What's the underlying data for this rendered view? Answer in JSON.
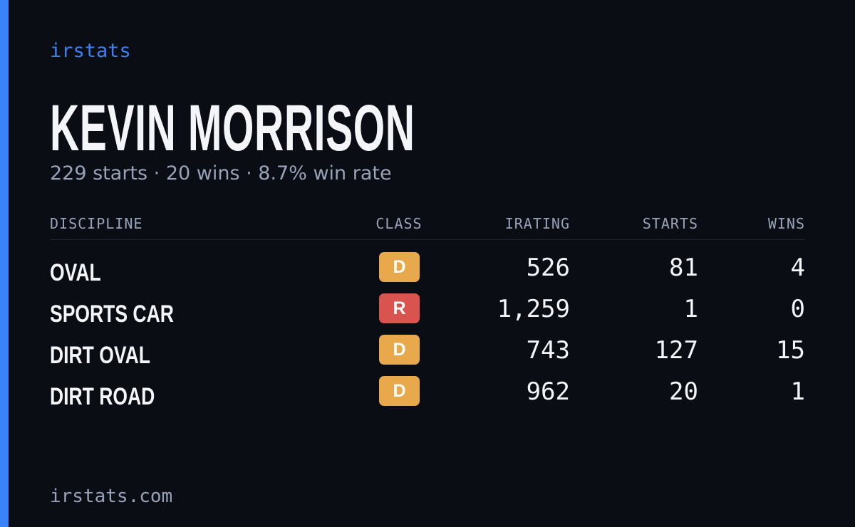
{
  "brand": "irstats",
  "driver": {
    "name": "KEVIN MORRISON",
    "summary": "229 starts · 20 wins · 8.7% win rate"
  },
  "table": {
    "headers": [
      "DISCIPLINE",
      "CLASS",
      "IRATING",
      "STARTS",
      "WINS"
    ],
    "rows": [
      {
        "discipline": "OVAL",
        "class": "D",
        "class_color": "#e8a94c",
        "irating": "526",
        "starts": "81",
        "wins": "4"
      },
      {
        "discipline": "SPORTS CAR",
        "class": "R",
        "class_color": "#d9534f",
        "irating": "1,259",
        "starts": "1",
        "wins": "0"
      },
      {
        "discipline": "DIRT OVAL",
        "class": "D",
        "class_color": "#e8a94c",
        "irating": "743",
        "starts": "127",
        "wins": "15"
      },
      {
        "discipline": "DIRT ROAD",
        "class": "D",
        "class_color": "#e8a94c",
        "irating": "962",
        "starts": "20",
        "wins": "1"
      }
    ]
  },
  "footer": "irstats.com"
}
